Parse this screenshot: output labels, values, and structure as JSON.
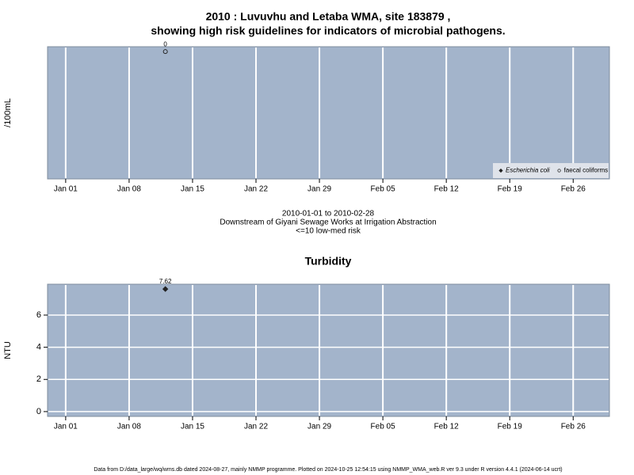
{
  "chart_data": [
    {
      "type": "scatter",
      "title": [
        "2010 : Luvuvhu and Letaba WMA, site 183879 ,",
        "showing high risk guidelines for indicators of microbial pathogens."
      ],
      "y_label": "/100mL",
      "annotations": [
        "2010-01-01 to 2010-02-28",
        "Downstream of Giyani Sewage Works at Irrigation Abstraction",
        "<=10 low-med risk"
      ],
      "xlim": [
        "2009-12-30",
        "2010-03-02"
      ],
      "xticks": [
        {
          "value": "2010-01-01",
          "label": "Jan 01"
        },
        {
          "value": "2010-01-08",
          "label": "Jan 08"
        },
        {
          "value": "2010-01-15",
          "label": "Jan 15"
        },
        {
          "value": "2010-01-22",
          "label": "Jan 22"
        },
        {
          "value": "2010-01-29",
          "label": "Jan 29"
        },
        {
          "value": "2010-02-05",
          "label": "Feb 05"
        },
        {
          "value": "2010-02-12",
          "label": "Feb 12"
        },
        {
          "value": "2010-02-19",
          "label": "Feb 19"
        },
        {
          "value": "2010-02-26",
          "label": "Feb 26"
        }
      ],
      "ylim": [
        -26,
        1
      ],
      "grid": true,
      "legend": "bottom-right",
      "series": [
        {
          "name": "Escherichia coli",
          "marker": "diamond",
          "color": "#222222",
          "x": [],
          "values": []
        },
        {
          "name": "faecal coliforms",
          "marker": "circle",
          "color": "#222222",
          "x": [
            "2010-01-12"
          ],
          "values": [
            0
          ]
        }
      ]
    },
    {
      "type": "scatter",
      "title": "Turbidity",
      "y_label": "NTU",
      "xlim": [
        "2009-12-30",
        "2010-03-02"
      ],
      "xticks": [
        {
          "value": "2010-01-01",
          "label": "Jan 01"
        },
        {
          "value": "2010-01-08",
          "label": "Jan 08"
        },
        {
          "value": "2010-01-15",
          "label": "Jan 15"
        },
        {
          "value": "2010-01-22",
          "label": "Jan 22"
        },
        {
          "value": "2010-01-29",
          "label": "Jan 29"
        },
        {
          "value": "2010-02-05",
          "label": "Feb 05"
        },
        {
          "value": "2010-02-12",
          "label": "Feb 12"
        },
        {
          "value": "2010-02-19",
          "label": "Feb 19"
        },
        {
          "value": "2010-02-26",
          "label": "Feb 26"
        }
      ],
      "ylim": [
        -0.3,
        7.92
      ],
      "yticks": [
        0,
        2,
        4,
        6
      ],
      "grid": true,
      "series": [
        {
          "name": "Turbidity",
          "marker": "diamond",
          "color": "#222222",
          "x": [
            "2010-01-12"
          ],
          "values": [
            7.62
          ]
        }
      ]
    }
  ],
  "footer": "Data from D:/data_large/wq/wms.db dated 2024-08-27, mainly NMMP programme. Plotted on 2024-10-25 12:54:15 using NMMP_WMA_web.R ver 9.3 under R version 4.4.1 (2024-06-14 ucrt)"
}
